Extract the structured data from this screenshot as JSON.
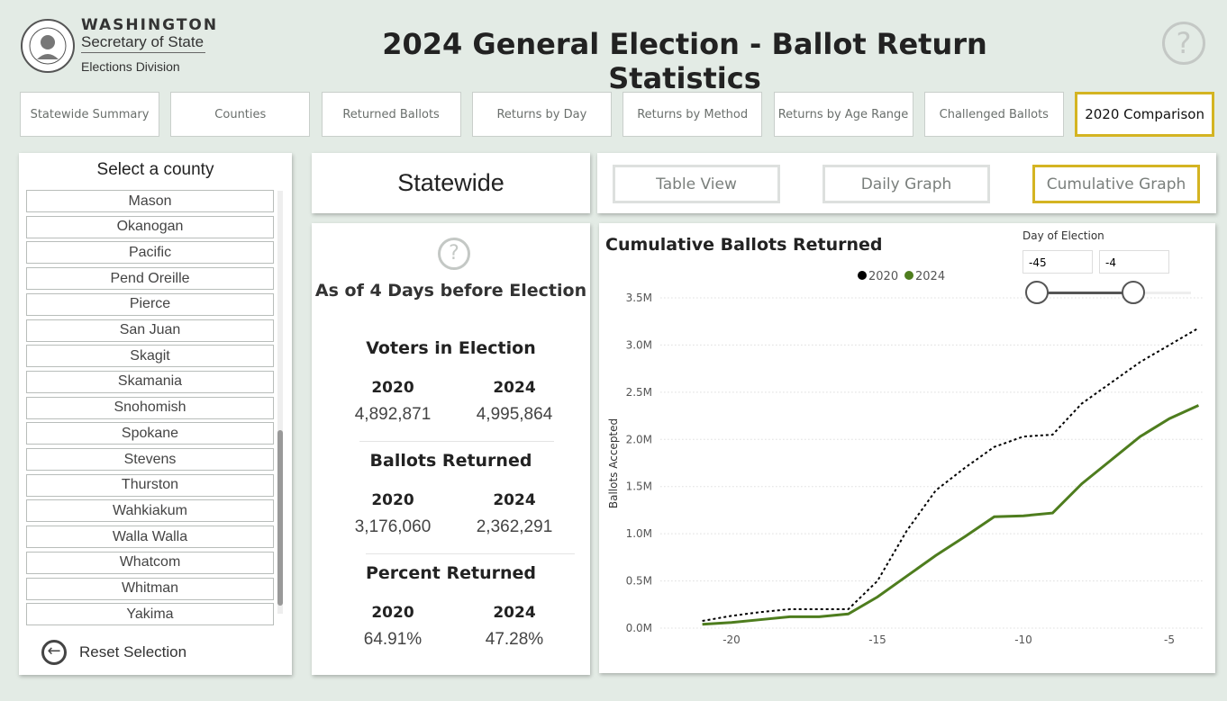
{
  "header": {
    "org": [
      "WASHINGTON",
      "Secretary of State",
      "Elections Division"
    ],
    "title": "2024 General Election - Ballot Return Statistics",
    "help": "?"
  },
  "tabs": {
    "items": [
      "Statewide Summary",
      "Counties",
      "Returned Ballots",
      "Returns by Day",
      "Returns by Method",
      "Returns by Age Range",
      "Challenged Ballots",
      "2020 Comparison"
    ],
    "active": 7
  },
  "county_panel": {
    "title": "Select a county",
    "counties": [
      "Mason",
      "Okanogan",
      "Pacific",
      "Pend Oreille",
      "Pierce",
      "San Juan",
      "Skagit",
      "Skamania",
      "Snohomish",
      "Spokane",
      "Stevens",
      "Thurston",
      "Wahkiakum",
      "Walla Walla",
      "Whatcom",
      "Whitman",
      "Yakima"
    ],
    "reset": "Reset Selection"
  },
  "selection": "Statewide",
  "views": {
    "items": [
      "Table View",
      "Daily Graph",
      "Cumulative Graph"
    ],
    "active": 2
  },
  "stats": {
    "help": "?",
    "as_of": "As of 4 Days before Election",
    "sections": [
      {
        "title": "Voters in Election",
        "years": [
          "2020",
          "2024"
        ],
        "values": [
          "4,892,871",
          "4,995,864"
        ]
      },
      {
        "title": "Ballots Returned",
        "years": [
          "2020",
          "2024"
        ],
        "values": [
          "3,176,060",
          "2,362,291"
        ]
      },
      {
        "title": "Percent Returned",
        "years": [
          "2020",
          "2024"
        ],
        "values": [
          "64.91%",
          "47.28%"
        ]
      }
    ]
  },
  "slider": {
    "label": "Day of Election",
    "from": "-45",
    "to": "-4"
  },
  "chart_data": {
    "type": "line",
    "title": "Cumulative Ballots Returned",
    "y_label": "Ballots Accepted",
    "x": [
      -21,
      -20,
      -19,
      -18,
      -17,
      -16,
      -15,
      -14,
      -13,
      -12,
      -11,
      -10,
      -9,
      -8,
      -7,
      -6,
      -5,
      -4
    ],
    "series": [
      {
        "name": "2020",
        "color": "#000000",
        "dash": true,
        "values": [
          76000,
          130000,
          170000,
          200000,
          200000,
          200000,
          500000,
          1030000,
          1460000,
          1700000,
          1920000,
          2030000,
          2050000,
          2380000,
          2600000,
          2820000,
          3000000,
          3180000
        ]
      },
      {
        "name": "2024",
        "color": "#4e7d1e",
        "dash": false,
        "values": [
          40000,
          60000,
          90000,
          120000,
          120000,
          150000,
          330000,
          550000,
          770000,
          970000,
          1180000,
          1190000,
          1220000,
          1530000,
          1780000,
          2030000,
          2220000,
          2360000
        ]
      }
    ],
    "xlim": [
      -21.5,
      -3.8
    ],
    "xticks": [
      -20,
      -15,
      -10,
      -5
    ],
    "ylim": [
      0,
      3500000
    ],
    "yticks": [
      {
        "value": 0,
        "label": "0.0M"
      },
      {
        "value": 500000,
        "label": "0.5M"
      },
      {
        "value": 1000000,
        "label": "1.0M"
      },
      {
        "value": 1500000,
        "label": "1.5M"
      },
      {
        "value": 2000000,
        "label": "2.0M"
      },
      {
        "value": 2500000,
        "label": "2.5M"
      },
      {
        "value": 3000000,
        "label": "3.0M"
      },
      {
        "value": 3500000,
        "label": "3.5M"
      }
    ],
    "grid": true,
    "legend": "top"
  }
}
